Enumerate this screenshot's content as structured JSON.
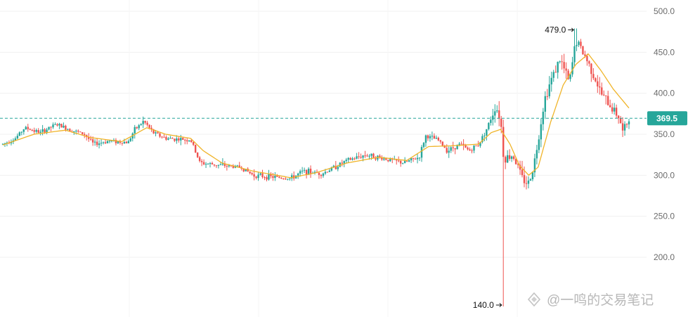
{
  "chart_data": {
    "type": "candlestick",
    "title": "",
    "xlabel": "",
    "ylabel": "",
    "ylim": [
      140,
      500
    ],
    "y_ticks": [
      "500.0",
      "450.0",
      "400.0",
      "350.0",
      "300.0",
      "250.0",
      "200.0"
    ],
    "grid": true,
    "current_price": {
      "label": "369.5",
      "value": 369.5,
      "color": "#26a69a"
    },
    "high_annotation": {
      "label": "479.0",
      "value": 479.0
    },
    "low_annotation": {
      "label": "140.0",
      "value": 140.0
    },
    "colors": {
      "up": "#26a69a",
      "down": "#ef5350",
      "ma": "#f0b429"
    },
    "price_path": [
      {
        "t": 0.0,
        "p": 338
      },
      {
        "t": 0.02,
        "p": 345
      },
      {
        "t": 0.035,
        "p": 358
      },
      {
        "t": 0.06,
        "p": 352
      },
      {
        "t": 0.085,
        "p": 362
      },
      {
        "t": 0.11,
        "p": 355
      },
      {
        "t": 0.13,
        "p": 350
      },
      {
        "t": 0.145,
        "p": 338
      },
      {
        "t": 0.17,
        "p": 342
      },
      {
        "t": 0.2,
        "p": 340
      },
      {
        "t": 0.21,
        "p": 355
      },
      {
        "t": 0.225,
        "p": 366
      },
      {
        "t": 0.24,
        "p": 352
      },
      {
        "t": 0.26,
        "p": 345
      },
      {
        "t": 0.3,
        "p": 343
      },
      {
        "t": 0.315,
        "p": 315
      },
      {
        "t": 0.35,
        "p": 312
      },
      {
        "t": 0.38,
        "p": 310
      },
      {
        "t": 0.4,
        "p": 300
      },
      {
        "t": 0.43,
        "p": 298
      },
      {
        "t": 0.46,
        "p": 296
      },
      {
        "t": 0.48,
        "p": 305
      },
      {
        "t": 0.51,
        "p": 302
      },
      {
        "t": 0.55,
        "p": 318
      },
      {
        "t": 0.58,
        "p": 325
      },
      {
        "t": 0.61,
        "p": 320
      },
      {
        "t": 0.64,
        "p": 315
      },
      {
        "t": 0.665,
        "p": 322
      },
      {
        "t": 0.675,
        "p": 348
      },
      {
        "t": 0.695,
        "p": 343
      },
      {
        "t": 0.71,
        "p": 330
      },
      {
        "t": 0.73,
        "p": 338
      },
      {
        "t": 0.745,
        "p": 330
      },
      {
        "t": 0.76,
        "p": 338
      },
      {
        "t": 0.775,
        "p": 360
      },
      {
        "t": 0.787,
        "p": 385
      },
      {
        "t": 0.795,
        "p": 368
      },
      {
        "t": 0.8,
        "p": 320
      },
      {
        "t": 0.815,
        "p": 325
      },
      {
        "t": 0.83,
        "p": 295
      },
      {
        "t": 0.84,
        "p": 290
      },
      {
        "t": 0.85,
        "p": 320
      },
      {
        "t": 0.865,
        "p": 392
      },
      {
        "t": 0.875,
        "p": 415
      },
      {
        "t": 0.89,
        "p": 442
      },
      {
        "t": 0.905,
        "p": 412
      },
      {
        "t": 0.915,
        "p": 465
      },
      {
        "t": 0.93,
        "p": 445
      },
      {
        "t": 0.945,
        "p": 420
      },
      {
        "t": 0.955,
        "p": 400
      },
      {
        "t": 0.97,
        "p": 385
      },
      {
        "t": 0.985,
        "p": 370
      },
      {
        "t": 0.99,
        "p": 352
      },
      {
        "t": 1.0,
        "p": 369.5
      }
    ],
    "ma_path": [
      {
        "t": 0.0,
        "p": 337
      },
      {
        "t": 0.05,
        "p": 350
      },
      {
        "t": 0.1,
        "p": 355
      },
      {
        "t": 0.14,
        "p": 346
      },
      {
        "t": 0.19,
        "p": 341
      },
      {
        "t": 0.23,
        "p": 358
      },
      {
        "t": 0.26,
        "p": 350
      },
      {
        "t": 0.3,
        "p": 345
      },
      {
        "t": 0.32,
        "p": 330
      },
      {
        "t": 0.35,
        "p": 315
      },
      {
        "t": 0.4,
        "p": 305
      },
      {
        "t": 0.46,
        "p": 297
      },
      {
        "t": 0.5,
        "p": 303
      },
      {
        "t": 0.55,
        "p": 315
      },
      {
        "t": 0.6,
        "p": 322
      },
      {
        "t": 0.645,
        "p": 318
      },
      {
        "t": 0.68,
        "p": 335
      },
      {
        "t": 0.72,
        "p": 336
      },
      {
        "t": 0.76,
        "p": 338
      },
      {
        "t": 0.78,
        "p": 352
      },
      {
        "t": 0.795,
        "p": 356
      },
      {
        "t": 0.81,
        "p": 338
      },
      {
        "t": 0.825,
        "p": 312
      },
      {
        "t": 0.84,
        "p": 300
      },
      {
        "t": 0.855,
        "p": 310
      },
      {
        "t": 0.875,
        "p": 365
      },
      {
        "t": 0.895,
        "p": 410
      },
      {
        "t": 0.915,
        "p": 435
      },
      {
        "t": 0.935,
        "p": 448
      },
      {
        "t": 0.955,
        "p": 428
      },
      {
        "t": 0.975,
        "p": 405
      },
      {
        "t": 1.0,
        "p": 382
      }
    ]
  },
  "watermark": "@一鸣的交易笔记"
}
